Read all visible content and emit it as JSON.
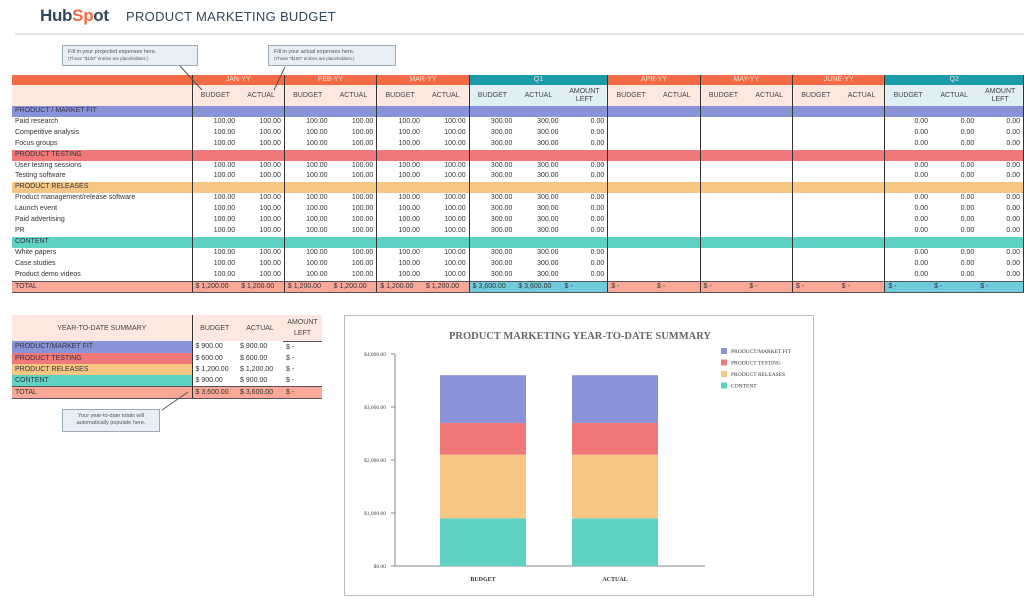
{
  "header": {
    "logo": "HubSpot",
    "title": "PRODUCT MARKETING BUDGET"
  },
  "callouts": {
    "projected": {
      "line1": "Fill in your projected expenses here.",
      "line2": "(Those \"$100\" entries are placeholders.)"
    },
    "actual": {
      "line1": "Fill in your actual expenses here.",
      "line2": "(Those \"$100\" entries are placeholders.)"
    },
    "ytd": {
      "line1": "Your year-to-date totals will",
      "line2": "automatically populate here."
    }
  },
  "colors": {
    "month": "#f26b45",
    "quarter": "#1b9aaa",
    "pmf": "#8a93d8",
    "testing": "#f07878",
    "releases": "#f7c682",
    "content": "#5fd3c3",
    "total": "#f9a898",
    "quarter_total": "#70cbdc"
  },
  "budget": {
    "groups": [
      {
        "label": "JAN-YY",
        "type": "month",
        "cols": [
          "BUDGET",
          "ACTUAL"
        ]
      },
      {
        "label": "FEB-YY",
        "type": "month",
        "cols": [
          "BUDGET",
          "ACTUAL"
        ]
      },
      {
        "label": "MAR-YY",
        "type": "month",
        "cols": [
          "BUDGET",
          "ACTUAL"
        ]
      },
      {
        "label": "Q1",
        "type": "quarter",
        "cols": [
          "BUDGET",
          "ACTUAL",
          "AMOUNT LEFT"
        ]
      },
      {
        "label": "APR-YY",
        "type": "month",
        "cols": [
          "BUDGET",
          "ACTUAL"
        ]
      },
      {
        "label": "MAY-YY",
        "type": "month",
        "cols": [
          "BUDGET",
          "ACTUAL"
        ]
      },
      {
        "label": "JUNE-YY",
        "type": "month",
        "cols": [
          "BUDGET",
          "ACTUAL"
        ]
      },
      {
        "label": "Q2",
        "type": "quarter",
        "cols": [
          "BUDGET",
          "ACTUAL",
          "AMOUNT LEFT"
        ]
      }
    ],
    "sections": [
      {
        "name": "PRODUCT / MARKET FIT",
        "color": "pmf",
        "items": [
          "Paid research",
          "Competitive analysis",
          "Focus groups"
        ]
      },
      {
        "name": "PRODUCT TESTING",
        "color": "testing",
        "items": [
          "User testing sessions",
          "Testing software"
        ]
      },
      {
        "name": "PRODUCT RELEASES",
        "color": "releases",
        "items": [
          "Product management/release software",
          "Launch event",
          "Paid advertising",
          "PR"
        ]
      },
      {
        "name": "CONTENT",
        "color": "content",
        "items": [
          "White papers",
          "Case studies",
          "Product demo videos"
        ]
      }
    ],
    "row_values": [
      "100.00",
      "100.00",
      "100.00",
      "100.00",
      "100.00",
      "100.00",
      "300.00",
      "300.00",
      "0.00",
      "",
      "",
      "",
      "",
      "",
      "",
      "0.00",
      "0.00",
      "0.00"
    ],
    "total_label": "TOTAL",
    "total_values": [
      "$ 1,200.00",
      "$ 1,200.00",
      "$ 1,200.00",
      "$ 1,200.00",
      "$ 1,200.00",
      "$ 1,200.00",
      "$ 3,600.00",
      "$ 3,600.00",
      "$ -",
      "$ -",
      "$ -",
      "$ -",
      "$ -",
      "$ -",
      "$ -",
      "$ -",
      "$ -",
      "$ -"
    ]
  },
  "summary": {
    "title": "YEAR-TO-DATE SUMMARY",
    "cols": [
      "BUDGET",
      "ACTUAL",
      "AMOUNT LEFT"
    ],
    "rows": [
      {
        "label": "PRODUCT/MARKET FIT",
        "color": "pmf",
        "values": [
          "$ 900.00",
          "$ 900.00",
          "$ -"
        ]
      },
      {
        "label": "PRODUCT TESTING",
        "color": "testing",
        "values": [
          "$ 600.00",
          "$ 600.00",
          "$ -"
        ]
      },
      {
        "label": "PRODUCT RELEASES",
        "color": "releases",
        "values": [
          "$ 1,200.00",
          "$ 1,200.00",
          "$ -"
        ]
      },
      {
        "label": "CONTENT",
        "color": "content",
        "values": [
          "$ 900.00",
          "$ 900.00",
          "$ -"
        ]
      }
    ],
    "total": {
      "label": "TOTAL",
      "values": [
        "$ 3,600.00",
        "$ 3,600.00",
        "$ -"
      ]
    }
  },
  "chart_data": {
    "type": "bar",
    "stacked": true,
    "title": "PRODUCT MARKETING YEAR-TO-DATE SUMMARY",
    "categories": [
      "BUDGET",
      "ACTUAL"
    ],
    "series": [
      {
        "name": "PRODUCT/MARKET FIT",
        "values": [
          900,
          900
        ],
        "color": "#8a93d8"
      },
      {
        "name": "PRODUCT TESTING",
        "values": [
          600,
          600
        ],
        "color": "#f07878"
      },
      {
        "name": "PRODUCT RELEASES",
        "values": [
          1200,
          1200
        ],
        "color": "#f7c682"
      },
      {
        "name": "CONTENT",
        "values": [
          900,
          900
        ],
        "color": "#5fd3c3"
      }
    ],
    "ylim": [
      0,
      4000
    ],
    "yticks": [
      "$0.00",
      "$1,000.00",
      "$2,000.00",
      "$3,000.00",
      "$4,000.00"
    ],
    "legend": "right",
    "grid": false
  }
}
